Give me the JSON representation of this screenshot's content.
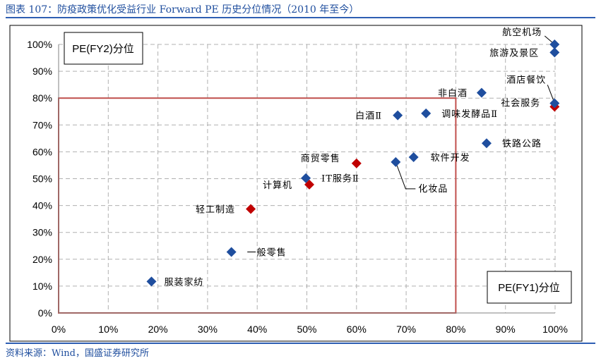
{
  "figure": {
    "title": "图表 107：防疫政策优化受益行业 Forward PE 历史分位情况（2010 年至今）",
    "source": "资料来源：Wind，国盛证券研究所"
  },
  "colors": {
    "blue": "#1f4e9e",
    "red": "#c00000",
    "box": "#c0504d",
    "grid": "#b0b0b0"
  },
  "chart_data": {
    "type": "scatter",
    "xlabel": "PE(FY1)分位",
    "ylabel": "PE(FY2)分位",
    "xlim": [
      0,
      100
    ],
    "ylim": [
      0,
      100
    ],
    "x_ticks": [
      "0%",
      "10%",
      "20%",
      "30%",
      "40%",
      "50%",
      "60%",
      "70%",
      "80%",
      "90%",
      "100%"
    ],
    "y_ticks": [
      "0%",
      "10%",
      "20%",
      "30%",
      "40%",
      "50%",
      "60%",
      "70%",
      "80%",
      "90%",
      "100%"
    ],
    "highlight_box": {
      "x": [
        0,
        80
      ],
      "y": [
        0,
        80
      ]
    },
    "points": [
      {
        "name": "服装家纺",
        "x": 18.7,
        "y": 11.7,
        "color": "blue"
      },
      {
        "name": "一般零售",
        "x": 34.8,
        "y": 22.7,
        "color": "blue"
      },
      {
        "name": "轻工制造",
        "x": 38.7,
        "y": 38.7,
        "color": "red"
      },
      {
        "name": "计算机",
        "x": 50.5,
        "y": 47.8,
        "color": "red"
      },
      {
        "name": "IT服务Ⅱ",
        "x": 49.8,
        "y": 50.2,
        "color": "blue"
      },
      {
        "name": "商贸零售",
        "x": 60.0,
        "y": 55.7,
        "color": "red"
      },
      {
        "name": "化妆品",
        "x": 67.9,
        "y": 56.2,
        "color": "blue"
      },
      {
        "name": "软件开发",
        "x": 71.5,
        "y": 58.0,
        "color": "blue"
      },
      {
        "name": "铁路公路",
        "x": 86.2,
        "y": 63.2,
        "color": "blue"
      },
      {
        "name": "白酒Ⅱ",
        "x": 68.3,
        "y": 73.6,
        "color": "blue"
      },
      {
        "name": "调味发酵品Ⅱ",
        "x": 74.0,
        "y": 74.3,
        "color": "blue"
      },
      {
        "name": "非白酒",
        "x": 85.2,
        "y": 82.0,
        "color": "blue"
      },
      {
        "name": "社会服务",
        "x": 99.9,
        "y": 76.8,
        "color": "red"
      },
      {
        "name": "酒店餐饮",
        "x": 99.9,
        "y": 78.1,
        "color": "blue"
      },
      {
        "name": "旅游及景区",
        "x": 99.9,
        "y": 97.0,
        "color": "blue"
      },
      {
        "name": "航空机场",
        "x": 99.9,
        "y": 100.0,
        "color": "blue"
      }
    ]
  }
}
